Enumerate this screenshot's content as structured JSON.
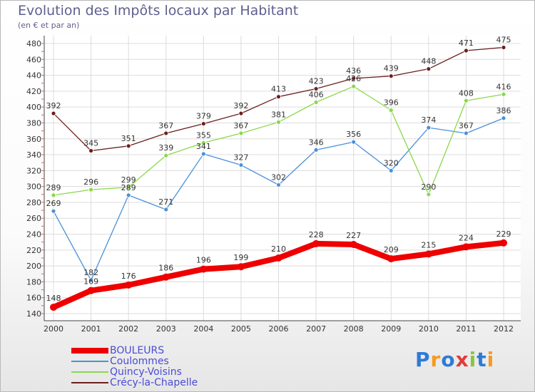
{
  "title": "Evolution des Impôts locaux par Habitant",
  "subtitle": "(en € et par an)",
  "logo": {
    "letters": [
      "P",
      "r",
      "o",
      "x",
      "i",
      "t",
      "i"
    ],
    "colors": [
      "#2e7bd6",
      "#f59a23",
      "#2e7bd6",
      "#e23b3b",
      "#8bc53f",
      "#2e7bd6",
      "#f59a23"
    ]
  },
  "chart_data": {
    "type": "line",
    "title": "Evolution des Impôts locaux par Habitant",
    "subtitle": "(en € et par an)",
    "xlabel": "",
    "ylabel": "",
    "x": [
      "2000",
      "2001",
      "2002",
      "2003",
      "2004",
      "2005",
      "2006",
      "2007",
      "2008",
      "2009",
      "2010",
      "2011",
      "2012"
    ],
    "ylim": [
      140,
      480
    ],
    "yticks": [
      140,
      160,
      180,
      200,
      220,
      240,
      260,
      280,
      300,
      320,
      340,
      360,
      380,
      400,
      420,
      440,
      460,
      480
    ],
    "grid": true,
    "legend_position": "bottom-left",
    "series": [
      {
        "name": "BOULEURS",
        "color": "#ee0000",
        "values": [
          148,
          169,
          176,
          186,
          196,
          199,
          210,
          228,
          227,
          209,
          215,
          224,
          229
        ]
      },
      {
        "name": "Coulommes",
        "color": "#4a90d9",
        "values": [
          269,
          182,
          289,
          271,
          341,
          327,
          302,
          346,
          356,
          320,
          374,
          367,
          386
        ]
      },
      {
        "name": "Quincy-Voisins",
        "color": "#8ad84a",
        "values": [
          289,
          296,
          299,
          339,
          355,
          367,
          381,
          406,
          426,
          396,
          290,
          408,
          416
        ]
      },
      {
        "name": "Crécy-la-Chapelle",
        "color": "#6b1f1f",
        "values": [
          392,
          345,
          351,
          367,
          379,
          392,
          413,
          423,
          436,
          439,
          448,
          471,
          475
        ]
      }
    ]
  }
}
